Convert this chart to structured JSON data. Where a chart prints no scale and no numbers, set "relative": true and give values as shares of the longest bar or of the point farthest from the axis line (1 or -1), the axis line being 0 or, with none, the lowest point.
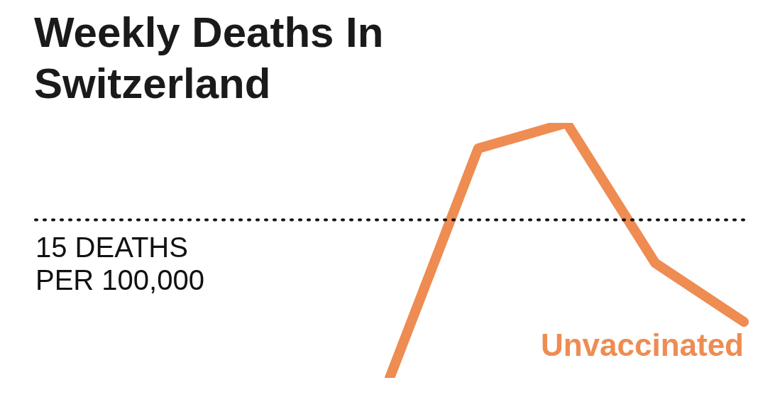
{
  "chart_data": {
    "type": "line",
    "title": "Weekly Deaths In Switzerland",
    "relative": true,
    "categories": [
      null,
      null,
      null,
      null,
      null,
      null,
      null,
      null,
      null
    ],
    "series": [
      {
        "name": "Unvaccinated",
        "color": "#ee8c52",
        "values": [
          null,
          null,
          null,
          null,
          0,
          0.9,
          1,
          0.45,
          0.22
        ]
      }
    ],
    "ref_lines": [
      {
        "axis": "y",
        "value": 0.62,
        "label": "15 DEATHS PER 100,000",
        "color": "#111111",
        "line_style": "dotted"
      }
    ],
    "legend": false,
    "marker": "none",
    "line_style": "solid"
  }
}
